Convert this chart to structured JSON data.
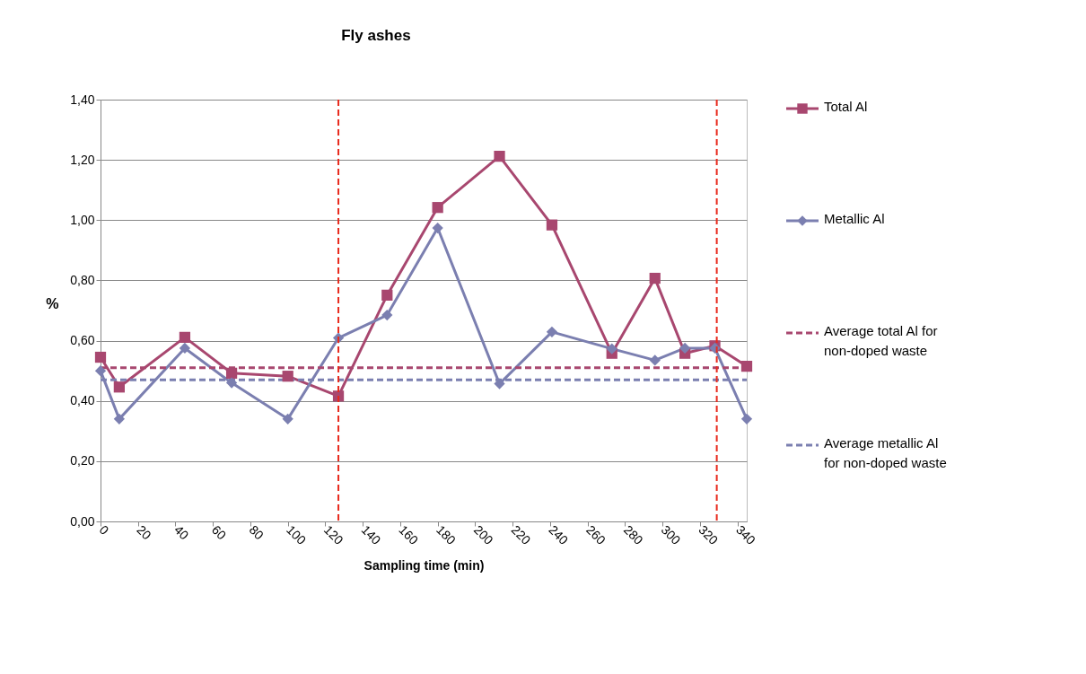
{
  "chart_data": {
    "type": "line",
    "title": "Fly ashes",
    "xlabel": "Sampling time (min)",
    "ylabel": "%",
    "xlim": [
      0,
      345
    ],
    "xticks": [
      0,
      20,
      40,
      60,
      80,
      100,
      120,
      140,
      160,
      180,
      200,
      220,
      240,
      260,
      280,
      300,
      320,
      340
    ],
    "ylim": [
      0,
      1.4
    ],
    "yticks": [
      {
        "value": 0,
        "label": "0,00"
      },
      {
        "value": 0.2,
        "label": "0,20"
      },
      {
        "value": 0.4,
        "label": "0,40"
      },
      {
        "value": 0.6,
        "label": "0,60"
      },
      {
        "value": 0.8,
        "label": "0,80"
      },
      {
        "value": 1.0,
        "label": "1,00"
      },
      {
        "value": 1.2,
        "label": "1,20"
      },
      {
        "value": 1.4,
        "label": "1,40"
      }
    ],
    "grid": "y",
    "legend": "right",
    "x": [
      0,
      10,
      45,
      70,
      100,
      127,
      153,
      180,
      213,
      241,
      273,
      296,
      312,
      328,
      345
    ],
    "series": [
      {
        "name": "Total Al",
        "color": "#a8476f",
        "marker": "square",
        "line_style": "solid",
        "values": [
          0.545,
          0.446,
          0.611,
          0.492,
          0.482,
          0.416,
          0.751,
          1.042,
          1.212,
          0.984,
          0.558,
          0.807,
          0.558,
          0.583,
          0.515
        ]
      },
      {
        "name": "Metallic Al",
        "color": "#7b7fb0",
        "marker": "diamond",
        "line_style": "solid",
        "values": [
          0.5,
          0.34,
          0.575,
          0.46,
          0.34,
          0.609,
          0.685,
          0.974,
          0.457,
          0.629,
          0.573,
          0.535,
          0.575,
          0.575,
          0.34
        ]
      }
    ],
    "ref_lines": [
      {
        "axis": "y",
        "value": 0.51,
        "label": "Average total Al for non-doped waste",
        "color": "#a8476f",
        "line_style": "dashed"
      },
      {
        "axis": "y",
        "value": 0.47,
        "label": "Average metallic Al for non-doped waste",
        "color": "#7b7fb0",
        "line_style": "dashed"
      },
      {
        "axis": "x",
        "value": 127,
        "color": "#e8291c",
        "line_style": "dashed"
      },
      {
        "axis": "x",
        "value": 329,
        "color": "#e8291c",
        "line_style": "dashed"
      }
    ]
  }
}
